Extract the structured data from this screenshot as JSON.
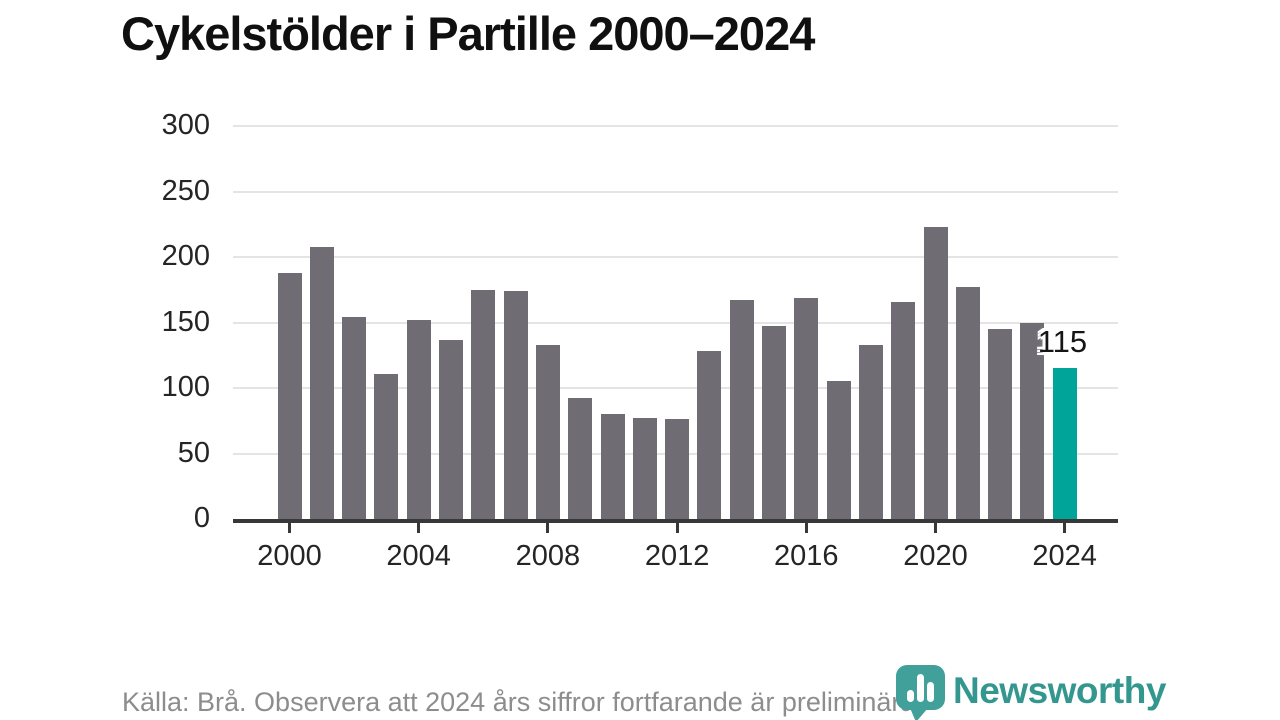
{
  "title": "Cykelstölder i Partille 2000–2024",
  "footer": {
    "source_note": "Källa: Brå. Observera att 2024 års siffror fortfarande är preliminära."
  },
  "logo": {
    "text": "Newsworthy",
    "icon": "newsworthy-speech-bubble-bar-chart-icon"
  },
  "colors": {
    "bar": "#6f6c74",
    "highlight": "#00a499",
    "grid": "#e4e4e4",
    "axis": "#383838",
    "tick_label": "#252525",
    "title": "#101010",
    "footer_text": "#8d8d8d",
    "brand_teal": "#33978f"
  },
  "chart_data": {
    "type": "bar",
    "title": "Cykelstölder i Partille 2000–2024",
    "xlabel": "",
    "ylabel": "",
    "ylim": [
      0,
      300
    ],
    "yticks": [
      0,
      50,
      100,
      150,
      200,
      250,
      300
    ],
    "xticks": [
      2000,
      2004,
      2008,
      2012,
      2016,
      2020,
      2024
    ],
    "grid": "horizontal",
    "legend": "none",
    "categories": [
      2000,
      2001,
      2002,
      2003,
      2004,
      2005,
      2006,
      2007,
      2008,
      2009,
      2010,
      2011,
      2012,
      2013,
      2014,
      2015,
      2016,
      2017,
      2018,
      2019,
      2020,
      2021,
      2022,
      2023,
      2024
    ],
    "values": [
      188,
      208,
      154,
      111,
      152,
      137,
      175,
      174,
      133,
      92,
      80,
      77,
      76,
      128,
      167,
      147,
      169,
      105,
      133,
      166,
      223,
      177,
      145,
      150,
      115
    ],
    "highlight_index": 24,
    "annotation": {
      "year": 2024,
      "value": 115,
      "label": "115"
    }
  }
}
